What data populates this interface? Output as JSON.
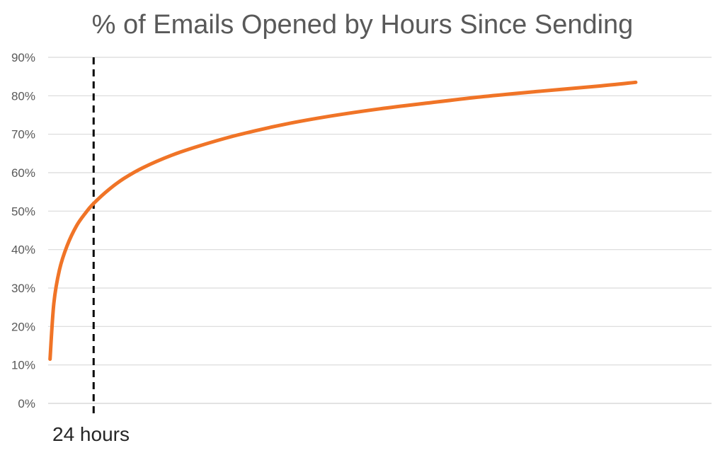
{
  "chart_data": {
    "type": "line",
    "title": "% of Emails Opened by Hours Since Sending",
    "xlabel": "",
    "ylabel": "",
    "ylim": [
      0,
      90
    ],
    "y_ticks": [
      "0%",
      "10%",
      "20%",
      "30%",
      "40%",
      "50%",
      "60%",
      "70%",
      "80%",
      "90%"
    ],
    "grid": "horizontal",
    "series_color": "#F07427",
    "grid_color": "#D9D9D9",
    "annotation": {
      "label": "24 hours",
      "x": 24,
      "style": "dashed-vertical-line",
      "color": "#000000"
    },
    "series": [
      {
        "values_percent": [
          [
            1,
            11.5
          ],
          [
            3,
            26
          ],
          [
            6,
            34.8
          ],
          [
            10,
            41
          ],
          [
            15,
            46.2
          ],
          [
            20,
            49.7
          ],
          [
            24,
            52
          ],
          [
            32,
            55.6
          ],
          [
            40,
            58.5
          ],
          [
            50,
            61.3
          ],
          [
            65,
            64.5
          ],
          [
            80,
            67
          ],
          [
            100,
            69.8
          ],
          [
            125,
            72.6
          ],
          [
            150,
            74.8
          ],
          [
            175,
            76.6
          ],
          [
            200,
            78.1
          ],
          [
            230,
            79.8
          ],
          [
            260,
            81.2
          ],
          [
            290,
            82.5
          ],
          [
            310,
            83.5
          ]
        ]
      }
    ],
    "xlim": [
      0,
      350
    ]
  }
}
